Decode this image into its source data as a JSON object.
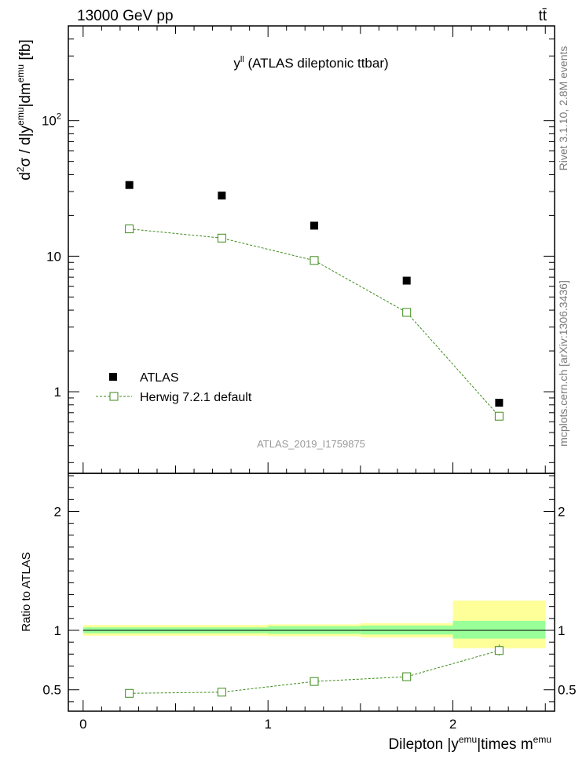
{
  "header": {
    "energy_label": "13000 GeV pp",
    "process_label": "tt̄"
  },
  "side_labels": {
    "rivet": "Rivet 3.1.10,  2.8M events",
    "mcplots": "mcplots.cern.ch [arXiv:1306.3436]"
  },
  "chart_data": [
    {
      "type": "scatter",
      "panel": "main",
      "title": "y^ll (ATLAS dileptonic ttbar)",
      "title_base": "y",
      "title_sup": "ll",
      "title_rest": " (ATLAS dileptonic ttbar)",
      "ylabel": "d²σ / d|y^emu|dm^emu [fb]",
      "ylabel_parts": {
        "a": "d",
        "a_sup": "2",
        "b": "σ / d|y",
        "b_sup": "emu",
        "c": "|dm",
        "c_sup": "emu",
        "d": " [fb]"
      },
      "yscale": "log",
      "ylim": [
        0.25,
        500
      ],
      "xlim": [
        -0.08,
        2.55
      ],
      "y_tick_labels": [
        {
          "value": 1,
          "label": "1"
        },
        {
          "value": 10,
          "label": "10"
        },
        {
          "value": 100,
          "label": "10",
          "sup": "2"
        }
      ],
      "watermark": "ATLAS_2019_I1759875",
      "legend": [
        {
          "name": "ATLAS",
          "marker": "filled-square"
        },
        {
          "name": "Herwig 7.2.1 default",
          "marker": "open-square-line"
        }
      ],
      "series": [
        {
          "name": "ATLAS",
          "x": [
            0.25,
            0.75,
            1.25,
            1.75,
            2.25
          ],
          "values": [
            33.5,
            28.0,
            16.8,
            6.6,
            0.83
          ],
          "color": "#000000"
        },
        {
          "name": "Herwig 7.2.1 default",
          "x": [
            0.25,
            0.75,
            1.25,
            1.75,
            2.25
          ],
          "values": [
            15.9,
            13.6,
            9.3,
            3.85,
            0.66
          ],
          "color": "#3d8a1a"
        }
      ]
    },
    {
      "type": "scatter",
      "panel": "ratio",
      "ylabel": "Ratio to ATLAS",
      "xlabel": "Dilepton |y^emu|times m^emu",
      "xlabel_parts": {
        "a": "Dilepton |y",
        "a_sup": "emu",
        "b": "|times m",
        "b_sup": "emu"
      },
      "xlim": [
        -0.08,
        2.55
      ],
      "ylim": [
        0.32,
        2.32
      ],
      "x_ticks": [
        0,
        1,
        2
      ],
      "y_ticks": [
        0.5,
        1,
        2
      ],
      "y_tick_labels": [
        "0.5",
        "1",
        "2"
      ],
      "bands": {
        "bins": [
          [
            0,
            0.5
          ],
          [
            0.5,
            1
          ],
          [
            1,
            1.5
          ],
          [
            1.5,
            2
          ],
          [
            2,
            2.5
          ]
        ],
        "inner_lo": [
          0.975,
          0.975,
          0.97,
          0.965,
          0.93
        ],
        "inner_hi": [
          1.025,
          1.025,
          1.035,
          1.04,
          1.08
        ],
        "outer_lo": [
          0.955,
          0.955,
          0.95,
          0.94,
          0.85
        ],
        "outer_hi": [
          1.045,
          1.045,
          1.05,
          1.06,
          1.25
        ],
        "inner_color": "#99ff99",
        "outer_color": "#ffff99"
      },
      "series": [
        {
          "name": "Herwig 7.2.1 default",
          "x": [
            0.25,
            0.75,
            1.25,
            1.75,
            2.25
          ],
          "values": [
            0.47,
            0.48,
            0.57,
            0.61,
            0.83
          ],
          "errors": [
            0.01,
            0.01,
            0.01,
            0.01,
            0.05
          ],
          "color": "#3d8a1a"
        }
      ]
    }
  ]
}
